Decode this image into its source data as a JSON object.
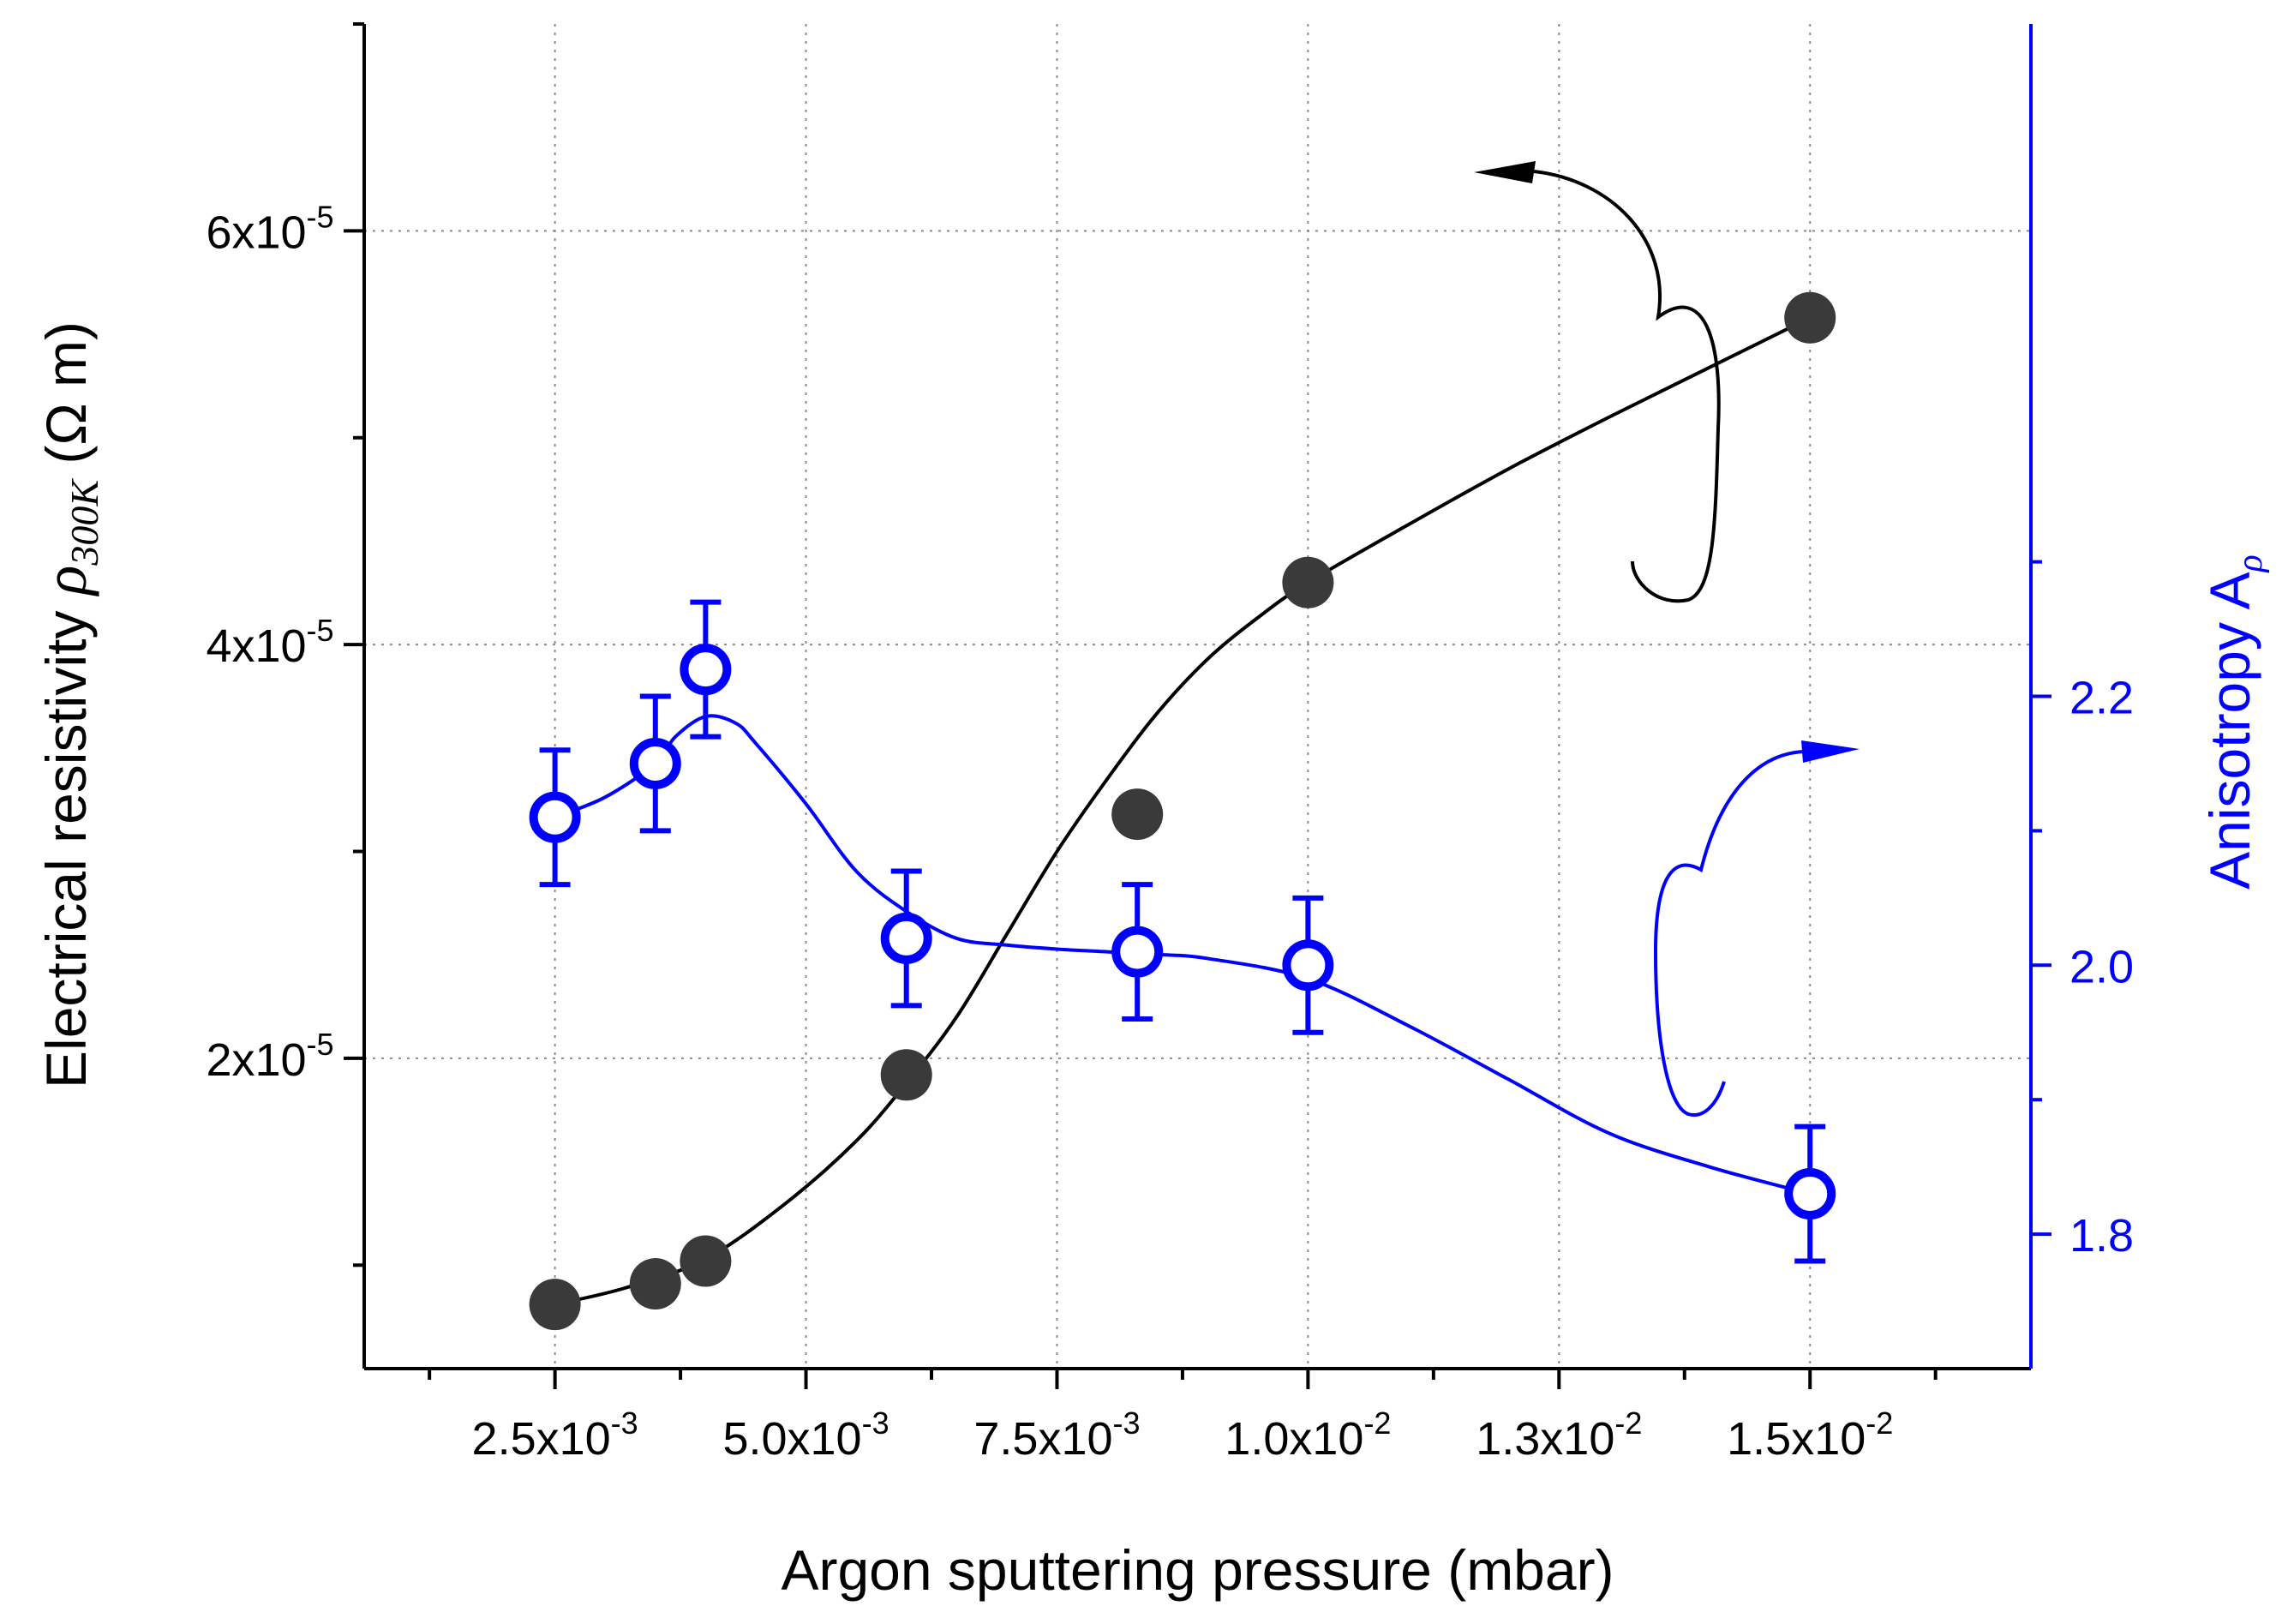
{
  "chart_data": {
    "type": "scatter",
    "title": "",
    "xlabel": "Argon sputtering pressure (mbar)",
    "ylabel_left": {
      "prefix": "Electrical resistivity ",
      "symbol": "ρ",
      "subscript": "300K",
      "unit": " (Ω m)"
    },
    "ylabel_right": {
      "prefix": "Anisotropy A",
      "subscript": "ρ"
    },
    "xlim": [
      0.0006,
      0.0172
    ],
    "ylim_left": [
      5e-06,
      7e-05
    ],
    "ylim_right": [
      1.7,
      2.7
    ],
    "grid": true,
    "x_ticks": [
      {
        "value": 0.0025,
        "mantissa": "2.5x10",
        "exp": "-3"
      },
      {
        "value": 0.005,
        "mantissa": "5.0x10",
        "exp": "-3"
      },
      {
        "value": 0.0075,
        "mantissa": "7.5x10",
        "exp": "-3"
      },
      {
        "value": 0.01,
        "mantissa": "1.0x10",
        "exp": "-2"
      },
      {
        "value": 0.0125,
        "mantissa": "1.3x10",
        "exp": "-2"
      },
      {
        "value": 0.015,
        "mantissa": "1.5x10",
        "exp": "-2"
      }
    ],
    "y_ticks_left": [
      {
        "value": 2e-05,
        "mantissa": "2x10",
        "exp": "-5"
      },
      {
        "value": 4e-05,
        "mantissa": "4x10",
        "exp": "-5"
      },
      {
        "value": 6e-05,
        "mantissa": "6x10",
        "exp": "-5"
      }
    ],
    "y_ticks_right": [
      {
        "value": 1.8,
        "label": "1.8"
      },
      {
        "value": 2.0,
        "label": "2.0"
      },
      {
        "value": 2.2,
        "label": "2.2"
      }
    ],
    "series": [
      {
        "name": "Electrical resistivity",
        "axis": "left",
        "color": "#3a3a3a",
        "line_color": "#000000",
        "marker": "filled-circle",
        "x": [
          0.0025,
          0.0035,
          0.004,
          0.006,
          0.0083,
          0.01,
          0.015
        ],
        "y": [
          8.1e-06,
          9.1e-06,
          1.02e-05,
          1.92e-05,
          3.18e-05,
          4.3e-05,
          5.58e-05
        ],
        "fit_x": [
          0.0025,
          0.0032,
          0.004,
          0.0048,
          0.0055,
          0.006,
          0.0065,
          0.007,
          0.0075,
          0.008,
          0.0085,
          0.009,
          0.0095,
          0.01,
          0.011,
          0.012,
          0.013,
          0.014,
          0.015
        ],
        "fit_y": [
          8.1e-06,
          8.9e-06,
          1.03e-05,
          1.3e-05,
          1.6e-05,
          1.88e-05,
          2.2e-05,
          2.6e-05,
          3e-05,
          3.35e-05,
          3.67e-05,
          3.93e-05,
          4.13e-05,
          4.3e-05,
          4.58e-05,
          4.85e-05,
          5.1e-05,
          5.34e-05,
          5.58e-05
        ]
      },
      {
        "name": "Anisotropy",
        "axis": "right",
        "color": "#0000ff",
        "marker": "open-circle",
        "x": [
          0.0025,
          0.0035,
          0.004,
          0.006,
          0.0083,
          0.01,
          0.015
        ],
        "y": [
          2.11,
          2.15,
          2.22,
          2.02,
          2.01,
          2.0,
          1.83
        ],
        "err": [
          0.05,
          0.05,
          0.05,
          0.05,
          0.05,
          0.05,
          0.05
        ],
        "fit_x": [
          0.0025,
          0.003,
          0.0035,
          0.0037,
          0.004,
          0.0043,
          0.0045,
          0.005,
          0.0055,
          0.006,
          0.0065,
          0.007,
          0.0075,
          0.008,
          0.0085,
          0.009,
          0.01,
          0.011,
          0.012,
          0.013,
          0.014,
          0.015
        ],
        "fit_y": [
          2.11,
          2.125,
          2.15,
          2.17,
          2.185,
          2.18,
          2.165,
          2.12,
          2.07,
          2.04,
          2.02,
          2.015,
          2.012,
          2.01,
          2.008,
          2.005,
          1.99,
          1.955,
          1.915,
          1.875,
          1.85,
          1.83
        ]
      }
    ],
    "annotations": [
      {
        "type": "curved-arrow",
        "direction": "to left axis",
        "color": "#000000",
        "near_series": "Electrical resistivity"
      },
      {
        "type": "curved-arrow",
        "direction": "to right axis",
        "color": "#0000ff",
        "near_series": "Anisotropy"
      }
    ]
  }
}
